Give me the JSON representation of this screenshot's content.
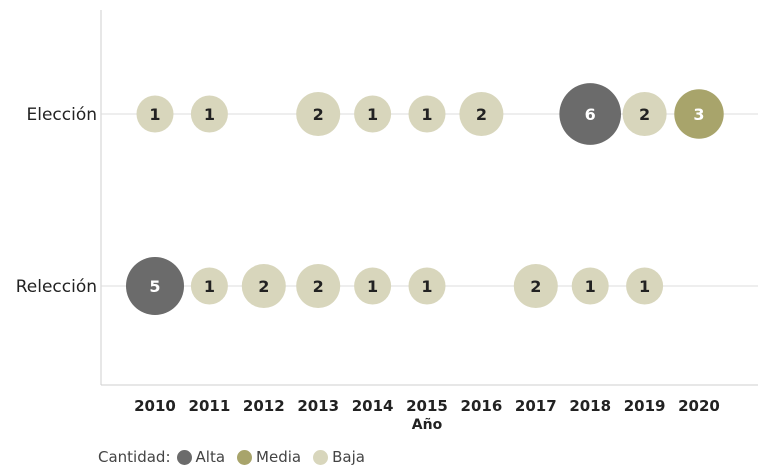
{
  "chart_data": {
    "type": "scatter",
    "title": "",
    "xlabel": "Año",
    "ylabel": "",
    "x": [
      2010,
      2011,
      2012,
      2013,
      2014,
      2015,
      2016,
      2017,
      2018,
      2019,
      2020
    ],
    "categories": [
      "Elección",
      "Relección"
    ],
    "grid": "horizontal lines at categories",
    "points": [
      {
        "category": "Elección",
        "year": 2010,
        "value": 1,
        "level": "Baja"
      },
      {
        "category": "Elección",
        "year": 2011,
        "value": 1,
        "level": "Baja"
      },
      {
        "category": "Elección",
        "year": 2013,
        "value": 2,
        "level": "Baja"
      },
      {
        "category": "Elección",
        "year": 2014,
        "value": 1,
        "level": "Baja"
      },
      {
        "category": "Elección",
        "year": 2015,
        "value": 1,
        "level": "Baja"
      },
      {
        "category": "Elección",
        "year": 2016,
        "value": 2,
        "level": "Baja"
      },
      {
        "category": "Elección",
        "year": 2018,
        "value": 6,
        "level": "Alta"
      },
      {
        "category": "Elección",
        "year": 2019,
        "value": 2,
        "level": "Baja"
      },
      {
        "category": "Elección",
        "year": 2020,
        "value": 3,
        "level": "Media"
      },
      {
        "category": "Relección",
        "year": 2010,
        "value": 5,
        "level": "Alta"
      },
      {
        "category": "Relección",
        "year": 2011,
        "value": 1,
        "level": "Baja"
      },
      {
        "category": "Relección",
        "year": 2012,
        "value": 2,
        "level": "Baja"
      },
      {
        "category": "Relección",
        "year": 2013,
        "value": 2,
        "level": "Baja"
      },
      {
        "category": "Relección",
        "year": 2014,
        "value": 1,
        "level": "Baja"
      },
      {
        "category": "Relección",
        "year": 2015,
        "value": 1,
        "level": "Baja"
      },
      {
        "category": "Relección",
        "year": 2017,
        "value": 2,
        "level": "Baja"
      },
      {
        "category": "Relección",
        "year": 2018,
        "value": 1,
        "level": "Baja"
      },
      {
        "category": "Relección",
        "year": 2019,
        "value": 1,
        "level": "Baja"
      }
    ],
    "legend": {
      "title": "Cantidad:",
      "placement": "bottom-left",
      "items": [
        {
          "label": "Alta",
          "color": "#6b6b6b"
        },
        {
          "label": "Media",
          "color": "#a8a46b"
        },
        {
          "label": "Baja",
          "color": "#d8d6bc"
        }
      ]
    }
  }
}
